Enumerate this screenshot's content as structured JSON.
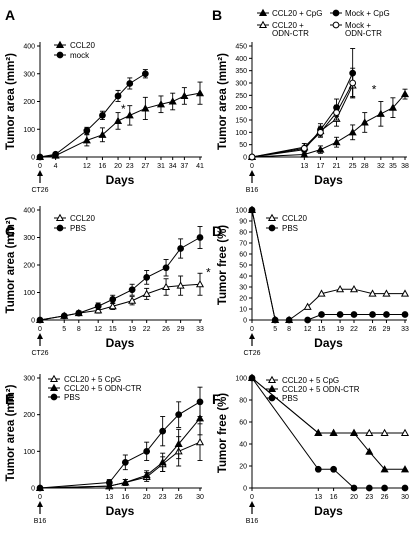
{
  "figure": {
    "panel_letters": [
      "A",
      "B",
      "C",
      "D",
      "E",
      "F"
    ],
    "arrow_labels": [
      "CT26",
      "B16",
      "CT26",
      "CT26",
      "B16",
      "B16"
    ]
  },
  "chart_data": [
    {
      "panel": "A",
      "type": "line",
      "xlabel": "Days",
      "ylabel": "Tumor area (mm²)",
      "x": [
        0,
        4,
        12,
        16,
        20,
        23,
        27,
        31,
        34,
        37,
        41
      ],
      "xticks": [
        0,
        4,
        12,
        16,
        20,
        23,
        27,
        31,
        34,
        37,
        41
      ],
      "xlim": [
        0,
        41
      ],
      "ylim": [
        0,
        400
      ],
      "yticks": [
        0,
        100,
        200,
        300,
        400
      ],
      "arrow_label": "CT26",
      "arrow_x": 0,
      "star_x": 20,
      "series": [
        {
          "name": "CCL20",
          "marker": "triangle-filled",
          "x": [
            0,
            4,
            12,
            16,
            20,
            23,
            27,
            31,
            34,
            37,
            41
          ],
          "values": [
            0,
            5,
            60,
            80,
            130,
            150,
            175,
            190,
            200,
            220,
            230
          ],
          "err": [
            0,
            3,
            20,
            25,
            30,
            35,
            40,
            30,
            30,
            30,
            40
          ]
        },
        {
          "name": "mock",
          "marker": "circle-filled",
          "x": [
            0,
            4,
            12,
            16,
            20,
            23,
            27
          ],
          "values": [
            0,
            10,
            95,
            150,
            220,
            265,
            300
          ],
          "err": [
            0,
            3,
            12,
            15,
            20,
            20,
            15
          ]
        }
      ]
    },
    {
      "panel": "B",
      "type": "line",
      "xlabel": "Days",
      "ylabel": "Tumor area (mm²)",
      "xticks": [
        0,
        13,
        17,
        21,
        25,
        28,
        32,
        35,
        38
      ],
      "xlim": [
        0,
        38
      ],
      "ylim": [
        0,
        450
      ],
      "yticks": [
        0,
        50,
        100,
        150,
        200,
        250,
        300,
        350,
        400,
        450
      ],
      "arrow_label": "B16",
      "arrow_x": 0,
      "star_x": 29,
      "series": [
        {
          "name": "CCL20 + CpG",
          "marker": "triangle-filled",
          "x": [
            0,
            13,
            17,
            21,
            25,
            28,
            32,
            35,
            38
          ],
          "values": [
            0,
            10,
            30,
            60,
            100,
            140,
            175,
            200,
            255
          ],
          "err": [
            0,
            5,
            15,
            20,
            30,
            40,
            50,
            40,
            20
          ]
        },
        {
          "name": "CCL20 + ODN-CTR",
          "marker": "triangle-open",
          "x": [
            0,
            13,
            17,
            21,
            25
          ],
          "values": [
            0,
            40,
            105,
            155,
            290
          ],
          "err": [
            0,
            15,
            20,
            30,
            45
          ]
        },
        {
          "name": "Mock + CpG",
          "marker": "circle-filled",
          "x": [
            0,
            13,
            17,
            21,
            25
          ],
          "values": [
            0,
            30,
            110,
            200,
            340
          ],
          "err": [
            0,
            10,
            25,
            35,
            100
          ]
        },
        {
          "name": "Mock + ODN-CTR",
          "marker": "circle-open",
          "x": [
            0,
            13,
            17,
            21,
            25
          ],
          "values": [
            0,
            35,
            100,
            180,
            300
          ],
          "err": [
            0,
            10,
            20,
            30,
            60
          ]
        }
      ]
    },
    {
      "panel": "C",
      "type": "line",
      "xlabel": "Days",
      "ylabel": "Tumor area (mm²)",
      "xticks": [
        0,
        5,
        8,
        12,
        15,
        19,
        22,
        26,
        29,
        33
      ],
      "xlim": [
        0,
        33
      ],
      "ylim": [
        0,
        400
      ],
      "yticks": [
        0,
        100,
        200,
        300,
        400
      ],
      "arrow_label": "CT26",
      "arrow_x": 0,
      "star_x": 33,
      "series": [
        {
          "name": "CCL20",
          "marker": "triangle-open",
          "x": [
            0,
            5,
            8,
            12,
            15,
            19,
            22,
            26,
            29,
            33
          ],
          "values": [
            0,
            15,
            25,
            35,
            50,
            70,
            95,
            120,
            125,
            130
          ],
          "err": [
            0,
            5,
            8,
            10,
            12,
            15,
            20,
            30,
            35,
            40
          ]
        },
        {
          "name": "PBS",
          "marker": "circle-filled",
          "x": [
            0,
            5,
            8,
            12,
            15,
            19,
            22,
            26,
            29,
            33
          ],
          "values": [
            0,
            15,
            25,
            50,
            75,
            110,
            155,
            190,
            260,
            300
          ],
          "err": [
            0,
            5,
            8,
            12,
            15,
            20,
            25,
            30,
            35,
            40
          ]
        }
      ]
    },
    {
      "panel": "D",
      "type": "line",
      "xlabel": "Days",
      "ylabel": "Tumor free (%)",
      "xticks": [
        0,
        5,
        8,
        12,
        15,
        19,
        22,
        26,
        29,
        33
      ],
      "xlim": [
        0,
        33
      ],
      "ylim": [
        0,
        100
      ],
      "yticks": [
        0,
        10,
        20,
        30,
        40,
        50,
        60,
        70,
        80,
        90,
        100
      ],
      "arrow_label": "CT26",
      "arrow_x": 0,
      "series": [
        {
          "name": "CCL20",
          "marker": "triangle-open",
          "x": [
            0,
            5,
            8,
            12,
            15,
            19,
            22,
            26,
            29,
            33
          ],
          "values": [
            100,
            0,
            0,
            12,
            24,
            28,
            28,
            24,
            24,
            24
          ]
        },
        {
          "name": "PBS",
          "marker": "circle-filled",
          "x": [
            0,
            5,
            8,
            12,
            15,
            19,
            22,
            26,
            29,
            33
          ],
          "values": [
            100,
            0,
            0,
            0,
            5,
            5,
            5,
            5,
            5,
            5
          ]
        }
      ]
    },
    {
      "panel": "E",
      "type": "line",
      "xlabel": "Days",
      "ylabel": "Tumor area (mm²)",
      "xticks": [
        0,
        13,
        16,
        20,
        23,
        26,
        30
      ],
      "xlim": [
        0,
        30
      ],
      "ylim": [
        0,
        300
      ],
      "yticks": [
        0,
        100,
        200,
        300
      ],
      "arrow_label": "B16",
      "arrow_x": 0,
      "series": [
        {
          "name": "CCL20 + 5 CpG",
          "marker": "triangle-open",
          "x": [
            0,
            13,
            16,
            20,
            23,
            26,
            30
          ],
          "values": [
            0,
            5,
            15,
            30,
            65,
            100,
            125
          ],
          "err": [
            0,
            5,
            8,
            12,
            20,
            40,
            50
          ]
        },
        {
          "name": "CCL20 + 5 ODN-CTR",
          "marker": "triangle-filled",
          "x": [
            0,
            13,
            16,
            20,
            23,
            26,
            30
          ],
          "values": [
            0,
            5,
            15,
            35,
            70,
            120,
            190
          ],
          "err": [
            0,
            5,
            8,
            12,
            25,
            40,
            45
          ]
        },
        {
          "name": "PBS",
          "marker": "circle-filled",
          "x": [
            0,
            13,
            16,
            20,
            23,
            26,
            30
          ],
          "values": [
            0,
            15,
            70,
            100,
            155,
            200,
            235
          ],
          "err": [
            0,
            8,
            20,
            25,
            40,
            35,
            40
          ]
        }
      ]
    },
    {
      "panel": "F",
      "type": "line",
      "xlabel": "Days",
      "ylabel": "Tumor free (%)",
      "xticks": [
        0,
        13,
        16,
        20,
        23,
        26,
        30
      ],
      "xlim": [
        0,
        30
      ],
      "ylim": [
        0,
        100
      ],
      "yticks": [
        0,
        20,
        40,
        60,
        80,
        100
      ],
      "arrow_label": "B16",
      "arrow_x": 0,
      "series": [
        {
          "name": "CCL20 + 5 CpG",
          "marker": "triangle-open",
          "x": [
            0,
            13,
            16,
            20,
            23,
            26,
            30
          ],
          "values": [
            100,
            50,
            50,
            50,
            50,
            50,
            50
          ]
        },
        {
          "name": "CCL20 + 5 ODN-CTR",
          "marker": "triangle-filled",
          "x": [
            0,
            13,
            16,
            20,
            23,
            26,
            30
          ],
          "values": [
            100,
            50,
            50,
            50,
            33,
            17,
            17
          ]
        },
        {
          "name": "PBS",
          "marker": "circle-filled",
          "x": [
            0,
            13,
            16,
            20,
            23,
            26,
            30
          ],
          "values": [
            100,
            17,
            17,
            0,
            0,
            0,
            0
          ]
        }
      ]
    }
  ]
}
